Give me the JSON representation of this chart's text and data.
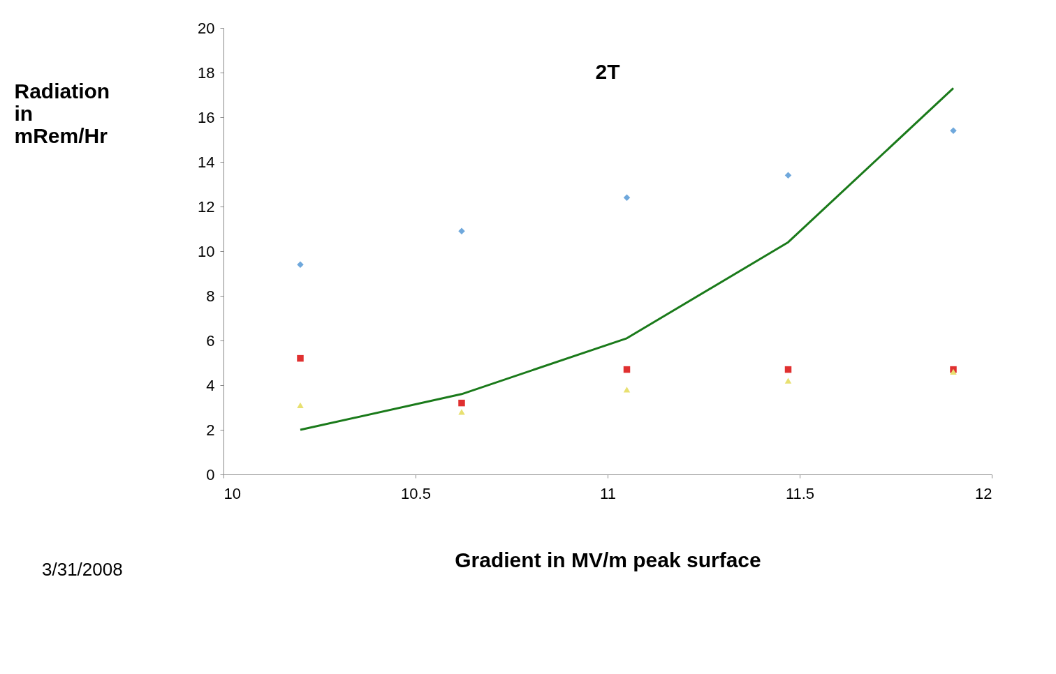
{
  "chart_data": {
    "type": "scatter",
    "title": "2T",
    "xlabel": "Gradient in MV/m peak surface",
    "ylabel": "Radiation in mRem/Hr",
    "x": [
      10.2,
      10.62,
      11.05,
      11.47,
      11.9
    ],
    "series": [
      {
        "color": "#6fa8dc",
        "marker": "diamond",
        "values": [
          9.4,
          10.9,
          12.4,
          13.4,
          15.4
        ]
      },
      {
        "color": "#e03030",
        "marker": "square",
        "values": [
          5.2,
          3.2,
          4.7,
          4.7,
          4.7
        ]
      },
      {
        "color": "#e8e070",
        "marker": "triangle",
        "values": [
          3.1,
          2.8,
          3.8,
          4.2,
          4.6
        ]
      },
      {
        "type": "line",
        "color": "#1a7a1a",
        "marker": "none",
        "values": [
          2.0,
          3.6,
          6.1,
          10.4,
          17.3
        ]
      }
    ],
    "xlim": [
      10,
      12
    ],
    "xticks": [
      10,
      10.5,
      11,
      11.5,
      12
    ],
    "ylim": [
      0,
      20
    ],
    "yticks": [
      0,
      2,
      4,
      6,
      8,
      10,
      12,
      14,
      16,
      18,
      20
    ],
    "grid": false,
    "annotations": [
      "3/31/2008"
    ]
  }
}
